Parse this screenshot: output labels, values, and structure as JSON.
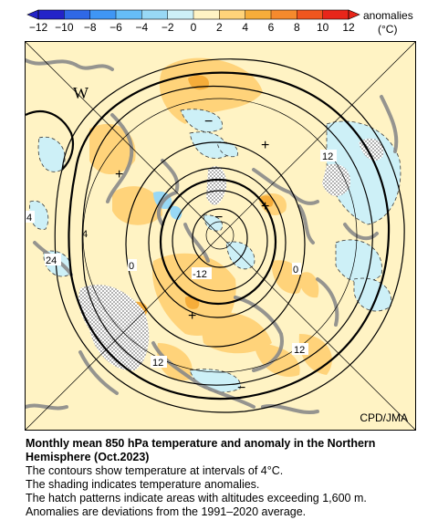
{
  "colorbar": {
    "title": "anomalies",
    "unit": "(°C)",
    "ticks": [
      "−12",
      "−10",
      "−8",
      "−6",
      "−4",
      "−2",
      "0",
      "2",
      "4",
      "6",
      "8",
      "10",
      "12"
    ],
    "colors": [
      "#2323c8",
      "#2f68e6",
      "#3f96f5",
      "#66bdf7",
      "#98d8f5",
      "#cdf0f7",
      "#fff3c4",
      "#ffd37a",
      "#f6ad3a",
      "#f58a2d",
      "#f0561f",
      "#e8261a"
    ]
  },
  "map": {
    "credit": "CPD/JMA",
    "labels": {
      "w": "W",
      "minus": "−",
      "plus": "+",
      "c12a": "12",
      "c4": "4",
      "c24": "24",
      "c0a": "0",
      "cm12": "-12",
      "c0b": "0",
      "c12b": "12",
      "c12c": "12",
      "c_ir": "4"
    },
    "palette": {
      "neutral": "#fff3c4",
      "warm1": "#ffd37a",
      "warm2": "#f6ad3a",
      "cool1": "#cdf0f7",
      "cool2": "#98d8f5",
      "land": "#8a8a8a",
      "hatch": "#a7a7a7"
    }
  },
  "caption": {
    "title_line1": "Monthly mean 850 hPa temperature and anomaly in the Northern",
    "title_line2": "Hemisphere (Oct.2023)",
    "line1": "The contours show temperature at intervals of 4°C.",
    "line2": "The shading indicates temperature anomalies.",
    "line3": "The hatch patterns indicate areas with altitudes exceeding 1,600 m.",
    "line4": "Anomalies are deviations from the 1991–2020 average."
  }
}
